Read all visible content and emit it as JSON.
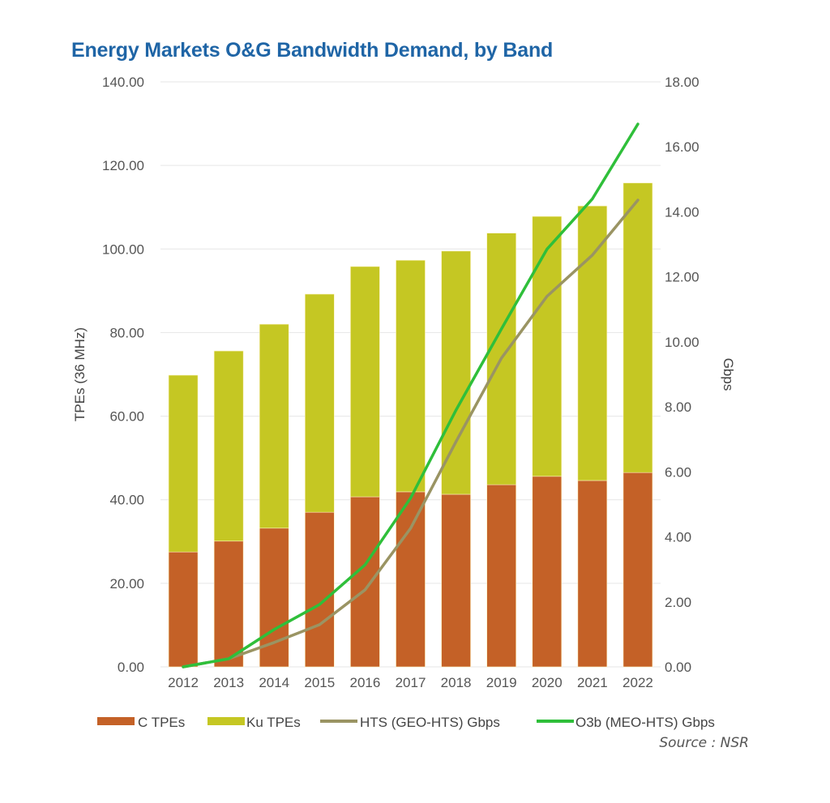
{
  "chart_data": {
    "type": "bar",
    "title": "Energy Markets O&G Bandwidth Demand, by Band",
    "categories": [
      "2012",
      "2013",
      "2014",
      "2015",
      "2016",
      "2017",
      "2018",
      "2019",
      "2020",
      "2021",
      "2022"
    ],
    "stacked": true,
    "series": [
      {
        "name": "C TPEs",
        "type": "bar",
        "axis": "left",
        "color": "#c46127",
        "values": [
          27.5,
          30.1,
          33.2,
          37.0,
          40.7,
          41.9,
          41.3,
          43.6,
          45.6,
          44.6,
          46.5
        ]
      },
      {
        "name": "Ku TPEs",
        "type": "bar",
        "axis": "left",
        "color": "#c5c723",
        "values": [
          42.3,
          45.5,
          48.8,
          52.2,
          55.1,
          55.4,
          58.2,
          60.2,
          62.2,
          65.7,
          69.3
        ]
      },
      {
        "name": "HTS (GEO-HTS) Gbps",
        "type": "line",
        "axis": "right",
        "color": "#9a9463",
        "values": [
          0.0,
          0.25,
          0.75,
          1.3,
          2.37,
          4.26,
          6.93,
          9.5,
          11.4,
          12.67,
          14.36
        ]
      },
      {
        "name": "O3b (MEO-HTS) Gbps",
        "type": "line",
        "axis": "right",
        "color": "#2fbf3a",
        "values": [
          0.0,
          0.25,
          1.15,
          1.92,
          3.14,
          5.19,
          7.9,
          10.4,
          12.85,
          14.4,
          16.7
        ]
      }
    ],
    "ylabel": "TPEs (36 MHz)",
    "ylim": [
      0,
      140
    ],
    "yticks": [
      "0.00",
      "20.00",
      "40.00",
      "60.00",
      "80.00",
      "100.00",
      "120.00",
      "140.00"
    ],
    "y2label": "Gbps",
    "y2lim": [
      0,
      18
    ],
    "y2ticks": [
      "0.00",
      "2.00",
      "4.00",
      "6.00",
      "8.00",
      "10.00",
      "12.00",
      "14.00",
      "16.00",
      "18.00"
    ],
    "grid": true,
    "legend_position": "bottom",
    "source": "Source : NSR"
  }
}
